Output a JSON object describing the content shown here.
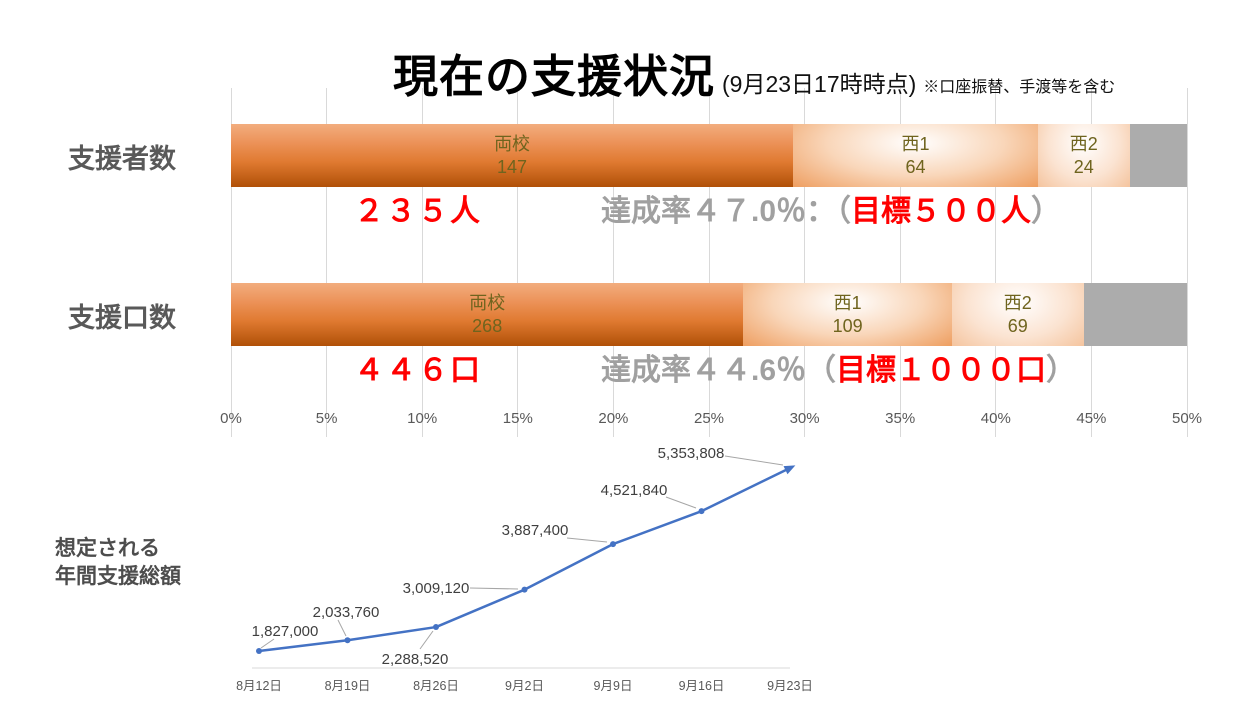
{
  "title": {
    "main": "現在の支援状況",
    "timestamp": "(9月23日17時時点)",
    "note": "※口座振替、手渡等を含む"
  },
  "colors": {
    "red": "#FF0000",
    "gray_text": "#A0A0A0",
    "dark_label": "#595959",
    "bar_value_label": "#6F641E",
    "line_blue": "#4472C4",
    "gridline": "#D9D9D9",
    "remainder_gray": "#ACACAC",
    "bar_orange_dark": "#B05007",
    "bar_orange_light": "#F2AD7E"
  },
  "axis": {
    "unit": "%",
    "min": 0,
    "max": 50,
    "ticks": [
      "0%",
      "5%",
      "10%",
      "15%",
      "20%",
      "25%",
      "30%",
      "35%",
      "40%",
      "45%",
      "50%"
    ]
  },
  "chart_data": [
    {
      "type": "bar",
      "subtype": "horizontal-stacked",
      "row_label": "支援者数",
      "target": 500,
      "axis_max_pct": 50,
      "segments": [
        {
          "name": "両校",
          "value": 147
        },
        {
          "name": "西1",
          "value": 64
        },
        {
          "name": "西2",
          "value": 24
        }
      ],
      "total": 235,
      "total_text": "２３５人",
      "achievement": {
        "prefix": "達成率４７.0％：（",
        "highlight": "目標５００人",
        "suffix": "）"
      }
    },
    {
      "type": "bar",
      "subtype": "horizontal-stacked",
      "row_label": "支援口数",
      "target": 1000,
      "axis_max_pct": 50,
      "segments": [
        {
          "name": "両校",
          "value": 268
        },
        {
          "name": "西1",
          "value": 109
        },
        {
          "name": "西2",
          "value": 69
        }
      ],
      "total": 446,
      "total_text": "４４６口",
      "achievement": {
        "prefix": "達成率４４.6％（",
        "highlight": "目標１０００口",
        "suffix": "）"
      }
    },
    {
      "type": "line",
      "title": "想定される年間支援総額",
      "categories": [
        "8月12日",
        "8月19日",
        "8月26日",
        "9月2日",
        "9月9日",
        "9月16日",
        "9月23日"
      ],
      "values": [
        1827000,
        2033760,
        2288520,
        3009120,
        3887400,
        4521840,
        5353808
      ],
      "labels": [
        "1,827,000",
        "2,033,760",
        "2,288,520",
        "3,009,120",
        "3,887,400",
        "4,521,840",
        "5,353,808"
      ],
      "legend": "none",
      "grid": "off"
    }
  ],
  "line_chart_title": {
    "line1": "想定される",
    "line2": "年間支援総額"
  }
}
